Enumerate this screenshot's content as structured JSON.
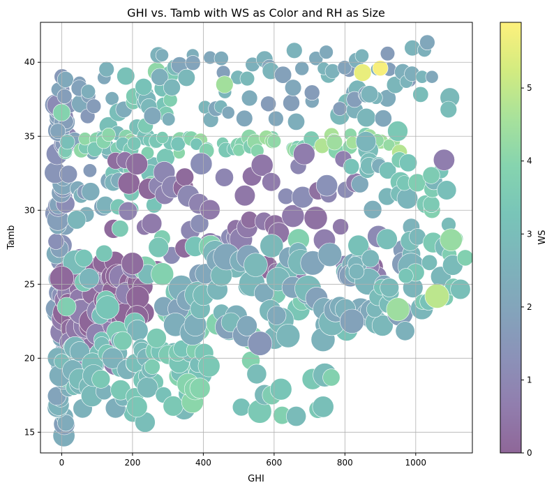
{
  "chart_data": {
    "type": "scatter",
    "title": "GHI vs. Tamb with WS as Color and RH as Size",
    "xlabel": "GHI",
    "ylabel": "Tamb",
    "colorbar_label": "WS",
    "colormap": "viridis",
    "marker_alpha": 0.6,
    "marker_edge_color": "#ffffff",
    "grid": true,
    "xlim": [
      -60,
      1160
    ],
    "ylim": [
      13.6,
      42.7
    ],
    "x_ticks": [
      0,
      200,
      400,
      600,
      800,
      1000
    ],
    "y_ticks": [
      15,
      20,
      25,
      30,
      35,
      40
    ],
    "color_range": [
      0,
      5.9
    ],
    "color_ticks": [
      0,
      1,
      2,
      3,
      4,
      5
    ],
    "size_variable": "RH",
    "regions": [
      {
        "x_start": 0,
        "x_end": 0,
        "y_start": 15,
        "y_end": 38,
        "ws_start": 2.2,
        "ws_end": 1.4,
        "rh": 70
      },
      {
        "x_start": 0,
        "x_end": 300,
        "y_start": 30,
        "y_end": 39.5,
        "ws_start": 1.6,
        "ws_end": 3.8,
        "rh": 55
      },
      {
        "x_start": 0,
        "x_end": 950,
        "y_start": 34.4,
        "y_end": 34.6,
        "ws_start": 3.6,
        "ws_end": 4.3,
        "rh": 45
      },
      {
        "x_start": 0,
        "x_end": 220,
        "y_start": 20,
        "y_end": 26.5,
        "ws_start": 0.4,
        "ws_end": 0.3,
        "rh": 85
      },
      {
        "x_start": 150,
        "x_end": 900,
        "y_start": 25.5,
        "y_end": 33.5,
        "ws_start": 0.6,
        "ws_end": 0.8,
        "rh": 75
      },
      {
        "x_start": 0,
        "x_end": 800,
        "y_start": 15.5,
        "y_end": 29.5,
        "ws_start": 3.2,
        "ws_end": 3.4,
        "rh": 80
      },
      {
        "x_start": 0,
        "x_end": 400,
        "y_start": 17,
        "y_end": 21,
        "ws_start": 2.6,
        "ws_end": 3.6,
        "rh": 70
      },
      {
        "x_start": 300,
        "x_end": 1000,
        "y_start": 21,
        "y_end": 27,
        "ws_start": 2.4,
        "ws_end": 2.3,
        "rh": 90
      },
      {
        "x_start": 800,
        "x_end": 1120,
        "y_start": 23.5,
        "y_end": 39,
        "ws_start": 2.6,
        "ws_end": 3.5,
        "rh": 65
      },
      {
        "x_start": 250,
        "x_end": 1050,
        "y_start": 36,
        "y_end": 41,
        "ws_start": 2.4,
        "ws_end": 2.1,
        "rh": 50
      }
    ],
    "highlights": [
      {
        "x": 0,
        "y": 25.4,
        "ws": 0.1,
        "rh": 95
      },
      {
        "x": 0,
        "y": 36.6,
        "ws": 3.9,
        "rh": 60
      },
      {
        "x": 1060,
        "y": 24.2,
        "ws": 4.9,
        "rh": 95
      },
      {
        "x": 950,
        "y": 23.3,
        "ws": 4.4,
        "rh": 90
      },
      {
        "x": 850,
        "y": 39.3,
        "ws": 5.6,
        "rh": 60
      },
      {
        "x": 900,
        "y": 39.6,
        "ws": 5.8,
        "rh": 50
      },
      {
        "x": 460,
        "y": 38.5,
        "ws": 4.5,
        "rh": 60
      },
      {
        "x": 1100,
        "y": 28.0,
        "ws": 4.3,
        "rh": 85
      },
      {
        "x": 200,
        "y": 26.4,
        "ws": 0.2,
        "rh": 85
      },
      {
        "x": 820,
        "y": 22.5,
        "ws": 1.9,
        "rh": 95
      },
      {
        "x": 560,
        "y": 21.0,
        "ws": 1.5,
        "rh": 95
      },
      {
        "x": 1080,
        "y": 33.4,
        "ws": 0.7,
        "rh": 80
      }
    ]
  }
}
